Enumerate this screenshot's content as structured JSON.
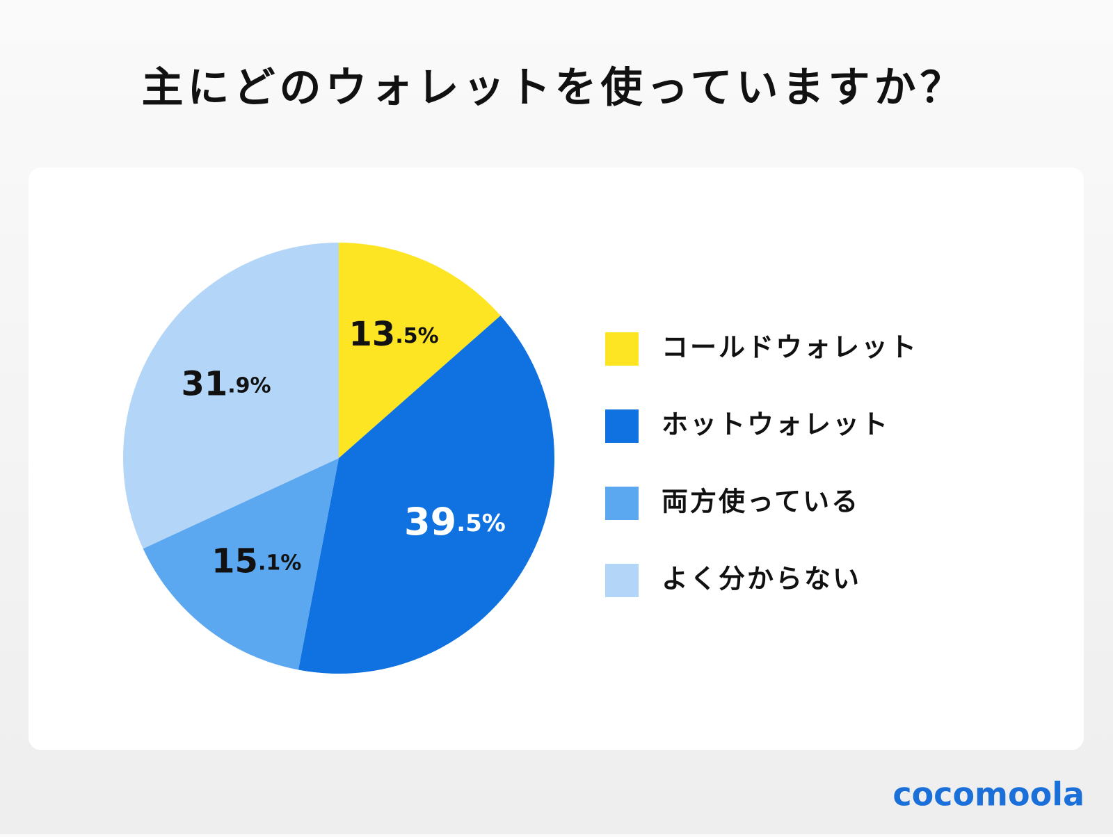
{
  "chart_data": {
    "type": "pie",
    "title": "主にどのウォレットを使っていますか？",
    "categories": [
      "コールドウォレット",
      "ホットウォレット",
      "両方使っている",
      "よく分からない"
    ],
    "values": [
      13.5,
      39.5,
      15.1,
      31.9
    ],
    "value_labels": [
      "13.5%",
      "39.5%",
      "15.1%",
      "31.9%"
    ],
    "colors": [
      "#fde523",
      "#1072e0",
      "#5ba8f0",
      "#b3d5f8"
    ],
    "legend": "right"
  },
  "brand": "cocomoola"
}
